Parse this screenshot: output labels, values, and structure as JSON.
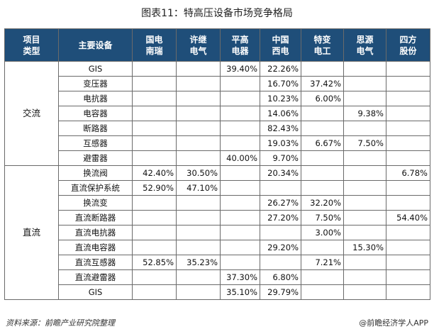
{
  "title": "图表11：特高压设备市场竞争格局",
  "headers": [
    [
      "项目",
      "类型"
    ],
    [
      "主要设备"
    ],
    [
      "国电",
      "南瑞"
    ],
    [
      "许继",
      "电气"
    ],
    [
      "平高",
      "电器"
    ],
    [
      "中国",
      "西电"
    ],
    [
      "特变",
      "电工"
    ],
    [
      "思源",
      "电气"
    ],
    [
      "四方",
      "股份"
    ]
  ],
  "groups": [
    {
      "category": "交流",
      "rows": [
        {
          "equipment": "GIS",
          "values": [
            "",
            "",
            "39.40%",
            "22.26%",
            "",
            "",
            ""
          ]
        },
        {
          "equipment": "变压器",
          "values": [
            "",
            "",
            "",
            "16.70%",
            "37.42%",
            "",
            ""
          ]
        },
        {
          "equipment": "电抗器",
          "values": [
            "",
            "",
            "",
            "10.23%",
            "6.00%",
            "",
            ""
          ]
        },
        {
          "equipment": "电容器",
          "values": [
            "",
            "",
            "",
            "14.06%",
            "",
            "9.38%",
            ""
          ]
        },
        {
          "equipment": "断路器",
          "values": [
            "",
            "",
            "",
            "82.43%",
            "",
            "",
            ""
          ]
        },
        {
          "equipment": "互感器",
          "values": [
            "",
            "",
            "",
            "19.03%",
            "6.67%",
            "7.50%",
            ""
          ]
        },
        {
          "equipment": "避雷器",
          "values": [
            "",
            "",
            "40.00%",
            "9.70%",
            "",
            "",
            ""
          ]
        }
      ]
    },
    {
      "category": "直流",
      "rows": [
        {
          "equipment": "换流阀",
          "values": [
            "42.40%",
            "30.50%",
            "",
            "20.34%",
            "",
            "",
            "6.78%"
          ]
        },
        {
          "equipment": "直流保护系统",
          "values": [
            "52.90%",
            "47.10%",
            "",
            "",
            "",
            "",
            ""
          ]
        },
        {
          "equipment": "换流变",
          "values": [
            "",
            "",
            "",
            "26.27%",
            "32.20%",
            "",
            ""
          ]
        },
        {
          "equipment": "直流断路器",
          "values": [
            "",
            "",
            "",
            "27.20%",
            "7.50%",
            "",
            "54.40%"
          ]
        },
        {
          "equipment": "直流电抗器",
          "values": [
            "",
            "",
            "",
            "",
            "3.00%",
            "",
            ""
          ]
        },
        {
          "equipment": "直流电容器",
          "values": [
            "",
            "",
            "",
            "29.20%",
            "",
            "15.30%",
            ""
          ]
        },
        {
          "equipment": "直流互感器",
          "values": [
            "52.85%",
            "35.23%",
            "",
            "",
            "7.21%",
            "",
            ""
          ]
        },
        {
          "equipment": "直流避雷器",
          "values": [
            "",
            "",
            "37.30%",
            "6.80%",
            "",
            "",
            ""
          ]
        },
        {
          "equipment": "GIS",
          "values": [
            "",
            "",
            "35.10%",
            "29.79%",
            "",
            "",
            ""
          ]
        }
      ]
    }
  ],
  "footer": {
    "source": "资料来源：前瞻产业研究院整理",
    "credit": "@前瞻经济学人APP"
  }
}
